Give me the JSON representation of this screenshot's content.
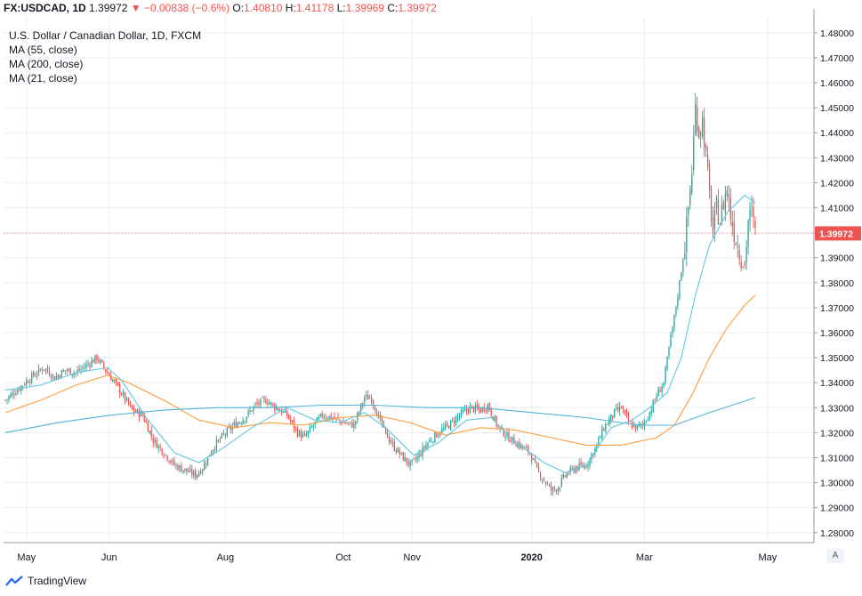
{
  "header": {
    "symbol": "FX:USDCAD, 1D",
    "last": "1.39972",
    "change": "▼ −0.00838 (−0.6%)",
    "o_label": "O:",
    "o_value": "1.40810",
    "h_label": "H:",
    "h_value": "1.41178",
    "l_label": "L:",
    "l_value": "1.39969",
    "c_label": "C:",
    "c_value": "1.39972"
  },
  "legend": {
    "title": "U.S. Dollar / Canadian Dollar, 1D, FXCM",
    "items": [
      "MA (55, close)",
      "MA (200, close)",
      "MA (21, close)"
    ]
  },
  "price_tag": "1.39972",
  "auto_button": "A",
  "branding": "TradingView",
  "colors": {
    "up": "#26a69a",
    "down": "#ef5350",
    "ma55": "#ff9b37",
    "ma200": "#4fb3d9",
    "ma21": "#5ec8e0",
    "grid": "#e9edf3",
    "axis_text": "#131722"
  },
  "chart_data": {
    "type": "candlestick",
    "timeframe": "1D",
    "x_ticks": [
      "May",
      "Jun",
      "Aug",
      "Oct",
      "Nov",
      "2020",
      "Mar",
      "May"
    ],
    "y_ticks": [
      "1.48000",
      "1.47000",
      "1.46000",
      "1.45000",
      "1.44000",
      "1.43000",
      "1.42000",
      "1.41000",
      "1.40000",
      "1.39000",
      "1.38000",
      "1.37000",
      "1.36000",
      "1.35000",
      "1.34000",
      "1.33000",
      "1.32000",
      "1.31000",
      "1.30000",
      "1.29000",
      "1.28000"
    ],
    "ylim": [
      1.276,
      1.486
    ],
    "close_path": [
      [
        0,
        1.333
      ],
      [
        8,
        1.338
      ],
      [
        16,
        1.343
      ],
      [
        22,
        1.346
      ],
      [
        28,
        1.342
      ],
      [
        34,
        1.345
      ],
      [
        40,
        1.344
      ],
      [
        46,
        1.347
      ],
      [
        52,
        1.35
      ],
      [
        58,
        1.344
      ],
      [
        64,
        1.338
      ],
      [
        72,
        1.329
      ],
      [
        78,
        1.327
      ],
      [
        84,
        1.317
      ],
      [
        90,
        1.312
      ],
      [
        96,
        1.307
      ],
      [
        102,
        1.305
      ],
      [
        108,
        1.303
      ],
      [
        112,
        1.306
      ],
      [
        118,
        1.314
      ],
      [
        124,
        1.319
      ],
      [
        130,
        1.323
      ],
      [
        136,
        1.326
      ],
      [
        142,
        1.331
      ],
      [
        148,
        1.333
      ],
      [
        154,
        1.33
      ],
      [
        160,
        1.327
      ],
      [
        166,
        1.32
      ],
      [
        170,
        1.318
      ],
      [
        174,
        1.322
      ],
      [
        180,
        1.327
      ],
      [
        186,
        1.326
      ],
      [
        192,
        1.324
      ],
      [
        198,
        1.323
      ],
      [
        204,
        1.334
      ],
      [
        208,
        1.334
      ],
      [
        212,
        1.326
      ],
      [
        216,
        1.32
      ],
      [
        220,
        1.315
      ],
      [
        226,
        1.31
      ],
      [
        230,
        1.307
      ],
      [
        234,
        1.31
      ],
      [
        240,
        1.316
      ],
      [
        246,
        1.32
      ],
      [
        252,
        1.323
      ],
      [
        258,
        1.327
      ],
      [
        264,
        1.33
      ],
      [
        270,
        1.329
      ],
      [
        274,
        1.331
      ],
      [
        280,
        1.322
      ],
      [
        286,
        1.318
      ],
      [
        292,
        1.315
      ],
      [
        298,
        1.312
      ],
      [
        302,
        1.305
      ],
      [
        306,
        1.301
      ],
      [
        310,
        1.297
      ],
      [
        314,
        1.298
      ],
      [
        318,
        1.303
      ],
      [
        324,
        1.306
      ],
      [
        330,
        1.307
      ],
      [
        336,
        1.315
      ],
      [
        340,
        1.322
      ],
      [
        346,
        1.328
      ],
      [
        350,
        1.33
      ],
      [
        354,
        1.324
      ],
      [
        358,
        1.322
      ],
      [
        362,
        1.323
      ],
      [
        366,
        1.328
      ],
      [
        370,
        1.335
      ],
      [
        374,
        1.34
      ],
      [
        376,
        1.349
      ],
      [
        378,
        1.358
      ],
      [
        380,
        1.366
      ],
      [
        382,
        1.375
      ],
      [
        384,
        1.385
      ],
      [
        386,
        1.395
      ],
      [
        388,
        1.41
      ],
      [
        390,
        1.425
      ],
      [
        392,
        1.45
      ],
      [
        394,
        1.44
      ],
      [
        396,
        1.445
      ],
      [
        398,
        1.43
      ],
      [
        400,
        1.415
      ],
      [
        402,
        1.4
      ],
      [
        404,
        1.41
      ],
      [
        406,
        1.405
      ],
      [
        408,
        1.412
      ],
      [
        410,
        1.418
      ],
      [
        412,
        1.407
      ],
      [
        414,
        1.4
      ],
      [
        416,
        1.395
      ],
      [
        418,
        1.39
      ],
      [
        420,
        1.387
      ],
      [
        422,
        1.405
      ],
      [
        424,
        1.408
      ],
      [
        426,
        1.3997
      ]
    ],
    "series": [
      {
        "name": "MA (55, close)",
        "points": [
          [
            0,
            1.328
          ],
          [
            20,
            1.333
          ],
          [
            40,
            1.339
          ],
          [
            58,
            1.343
          ],
          [
            70,
            1.34
          ],
          [
            90,
            1.333
          ],
          [
            110,
            1.325
          ],
          [
            130,
            1.322
          ],
          [
            150,
            1.324
          ],
          [
            170,
            1.323
          ],
          [
            190,
            1.326
          ],
          [
            210,
            1.327
          ],
          [
            230,
            1.324
          ],
          [
            250,
            1.319
          ],
          [
            270,
            1.322
          ],
          [
            290,
            1.321
          ],
          [
            310,
            1.318
          ],
          [
            330,
            1.315
          ],
          [
            350,
            1.315
          ],
          [
            370,
            1.318
          ],
          [
            380,
            1.323
          ],
          [
            390,
            1.335
          ],
          [
            400,
            1.35
          ],
          [
            410,
            1.362
          ],
          [
            420,
            1.371
          ],
          [
            426,
            1.375
          ]
        ]
      },
      {
        "name": "MA (200, close)",
        "points": [
          [
            0,
            1.32
          ],
          [
            30,
            1.324
          ],
          [
            60,
            1.327
          ],
          [
            90,
            1.329
          ],
          [
            120,
            1.33
          ],
          [
            150,
            1.33
          ],
          [
            180,
            1.331
          ],
          [
            210,
            1.331
          ],
          [
            240,
            1.33
          ],
          [
            270,
            1.33
          ],
          [
            300,
            1.328
          ],
          [
            330,
            1.326
          ],
          [
            360,
            1.323
          ],
          [
            380,
            1.323
          ],
          [
            400,
            1.328
          ],
          [
            426,
            1.334
          ]
        ]
      },
      {
        "name": "MA (21, close)",
        "points": [
          [
            0,
            1.337
          ],
          [
            20,
            1.339
          ],
          [
            40,
            1.344
          ],
          [
            58,
            1.346
          ],
          [
            66,
            1.341
          ],
          [
            80,
            1.326
          ],
          [
            96,
            1.312
          ],
          [
            110,
            1.308
          ],
          [
            124,
            1.314
          ],
          [
            140,
            1.322
          ],
          [
            160,
            1.33
          ],
          [
            176,
            1.325
          ],
          [
            190,
            1.324
          ],
          [
            204,
            1.328
          ],
          [
            216,
            1.322
          ],
          [
            232,
            1.311
          ],
          [
            246,
            1.316
          ],
          [
            262,
            1.325
          ],
          [
            276,
            1.326
          ],
          [
            290,
            1.316
          ],
          [
            306,
            1.308
          ],
          [
            318,
            1.304
          ],
          [
            330,
            1.307
          ],
          [
            344,
            1.322
          ],
          [
            356,
            1.325
          ],
          [
            366,
            1.33
          ],
          [
            376,
            1.336
          ],
          [
            384,
            1.35
          ],
          [
            392,
            1.375
          ],
          [
            400,
            1.395
          ],
          [
            410,
            1.408
          ],
          [
            420,
            1.415
          ],
          [
            426,
            1.412
          ]
        ]
      }
    ]
  }
}
